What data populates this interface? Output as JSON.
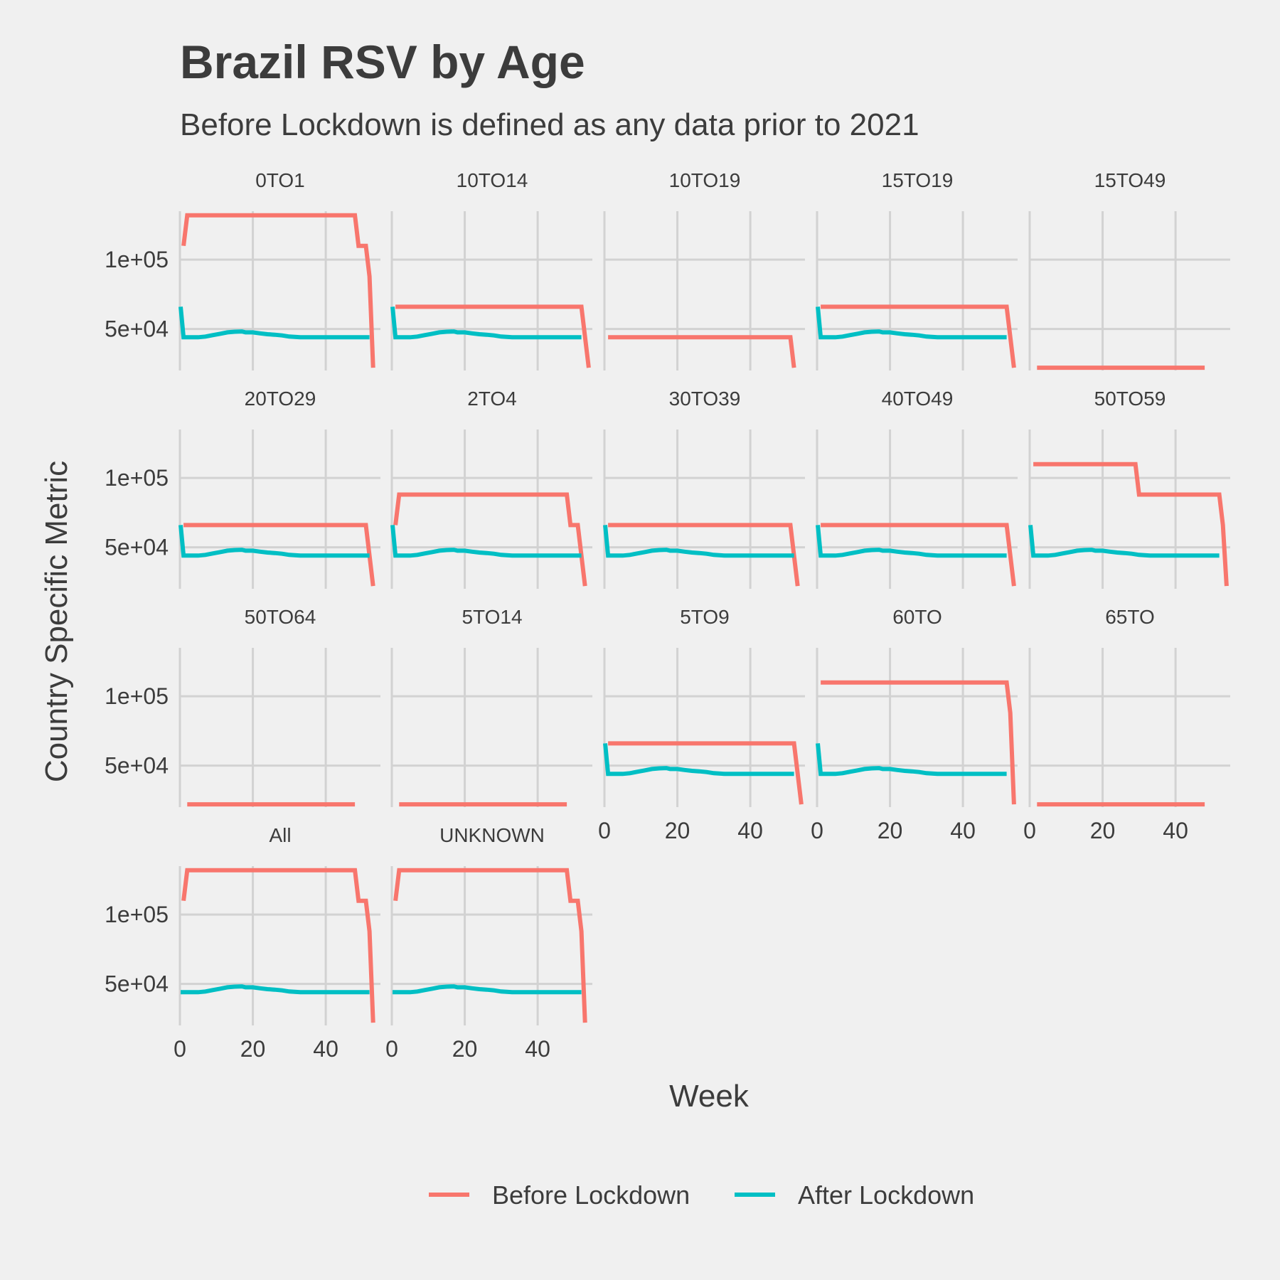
{
  "chart_data": {
    "type": "line",
    "title": "Brazil RSV by Age",
    "subtitle": "Before Lockdown is defined as any data prior to 2021",
    "xlabel": "Week",
    "ylabel": "Country Specific Metric",
    "xlim": [
      0,
      55
    ],
    "ylim": [
      20000,
      135000
    ],
    "x_ticks": [
      0,
      20,
      40
    ],
    "x_tick_labels": [
      "0",
      "20",
      "40"
    ],
    "y_ticks": [
      50000,
      100000
    ],
    "y_tick_labels": [
      "5e+04",
      "1e+05"
    ],
    "facet_columns": 5,
    "grid": true,
    "legend": {
      "position": "bottom",
      "entries": [
        {
          "label": "Before Lockdown",
          "color": "#f8766d"
        },
        {
          "label": "After Lockdown",
          "color": "#00bfc4"
        }
      ]
    },
    "after_curve": {
      "x": [
        1,
        2,
        3,
        5,
        7,
        9,
        11,
        13,
        15,
        17,
        18,
        20,
        22,
        24,
        26,
        28,
        30,
        33,
        36,
        40,
        45,
        50,
        52
      ],
      "y": [
        44000,
        44000,
        44000,
        44000,
        44500,
        45500,
        46500,
        47500,
        48000,
        48200,
        47500,
        47500,
        46800,
        46200,
        45800,
        45300,
        44500,
        44000,
        44000,
        44000,
        44000,
        44000,
        44000
      ]
    },
    "facets": [
      {
        "label": "0TO1",
        "before": {
          "x": [
            1,
            2,
            3,
            48,
            49,
            51,
            52,
            53
          ],
          "y": [
            110000,
            132000,
            132000,
            132000,
            110000,
            110000,
            88000,
            22000
          ]
        },
        "after": {
          "start": 66000
        }
      },
      {
        "label": "10TO14",
        "before": {
          "x": [
            1,
            52,
            54
          ],
          "y": [
            66000,
            66000,
            22000
          ]
        },
        "after": {
          "start": 66000
        }
      },
      {
        "label": "10TO19",
        "before": {
          "x": [
            1,
            51,
            52
          ],
          "y": [
            44000,
            44000,
            22000
          ]
        },
        "after": null
      },
      {
        "label": "15TO19",
        "before": {
          "x": [
            1,
            52,
            54
          ],
          "y": [
            66000,
            66000,
            22000
          ]
        },
        "after": {
          "start": 66000
        }
      },
      {
        "label": "15TO49",
        "before": {
          "x": [
            2,
            48
          ],
          "y": [
            22000,
            22000
          ]
        },
        "after": null
      },
      {
        "label": "20TO29",
        "before": {
          "x": [
            1,
            51,
            53
          ],
          "y": [
            66000,
            66000,
            22000
          ]
        },
        "after": {
          "start": 66000
        }
      },
      {
        "label": "2TO4",
        "before": {
          "x": [
            1,
            2,
            48,
            49,
            51,
            53
          ],
          "y": [
            66000,
            88000,
            88000,
            66000,
            66000,
            22000
          ]
        },
        "after": {
          "start": 66000
        }
      },
      {
        "label": "30TO39",
        "before": {
          "x": [
            1,
            51,
            53
          ],
          "y": [
            66000,
            66000,
            22000
          ]
        },
        "after": {
          "start": 66000
        }
      },
      {
        "label": "40TO49",
        "before": {
          "x": [
            1,
            52,
            54
          ],
          "y": [
            66000,
            66000,
            22000
          ]
        },
        "after": {
          "start": 66000
        }
      },
      {
        "label": "50TO59",
        "before": {
          "x": [
            1,
            29,
            30,
            52,
            53,
            54
          ],
          "y": [
            110000,
            110000,
            88000,
            88000,
            66000,
            22000
          ]
        },
        "after": {
          "start": 66000
        }
      },
      {
        "label": "50TO64",
        "before": {
          "x": [
            2,
            48
          ],
          "y": [
            22000,
            22000
          ]
        },
        "after": null
      },
      {
        "label": "5TO14",
        "before": {
          "x": [
            2,
            48
          ],
          "y": [
            22000,
            22000
          ]
        },
        "after": null
      },
      {
        "label": "5TO9",
        "before": {
          "x": [
            1,
            52,
            54
          ],
          "y": [
            66000,
            66000,
            22000
          ]
        },
        "after": {
          "start": 66000
        }
      },
      {
        "label": "60TO",
        "before": {
          "x": [
            1,
            52,
            53,
            54
          ],
          "y": [
            110000,
            110000,
            88000,
            22000
          ]
        },
        "after": {
          "start": 66000
        }
      },
      {
        "label": "65TO",
        "before": {
          "x": [
            2,
            48
          ],
          "y": [
            22000,
            22000
          ]
        },
        "after": null
      },
      {
        "label": "All",
        "before": {
          "x": [
            1,
            2,
            48,
            49,
            51,
            52,
            53
          ],
          "y": [
            110000,
            132000,
            132000,
            110000,
            110000,
            88000,
            22000
          ]
        },
        "after": {
          "start": 44000
        }
      },
      {
        "label": "UNKNOWN",
        "before": {
          "x": [
            1,
            2,
            48,
            49,
            51,
            52,
            53
          ],
          "y": [
            110000,
            132000,
            132000,
            110000,
            110000,
            88000,
            22000
          ]
        },
        "after": {
          "start": 44000
        }
      }
    ]
  }
}
